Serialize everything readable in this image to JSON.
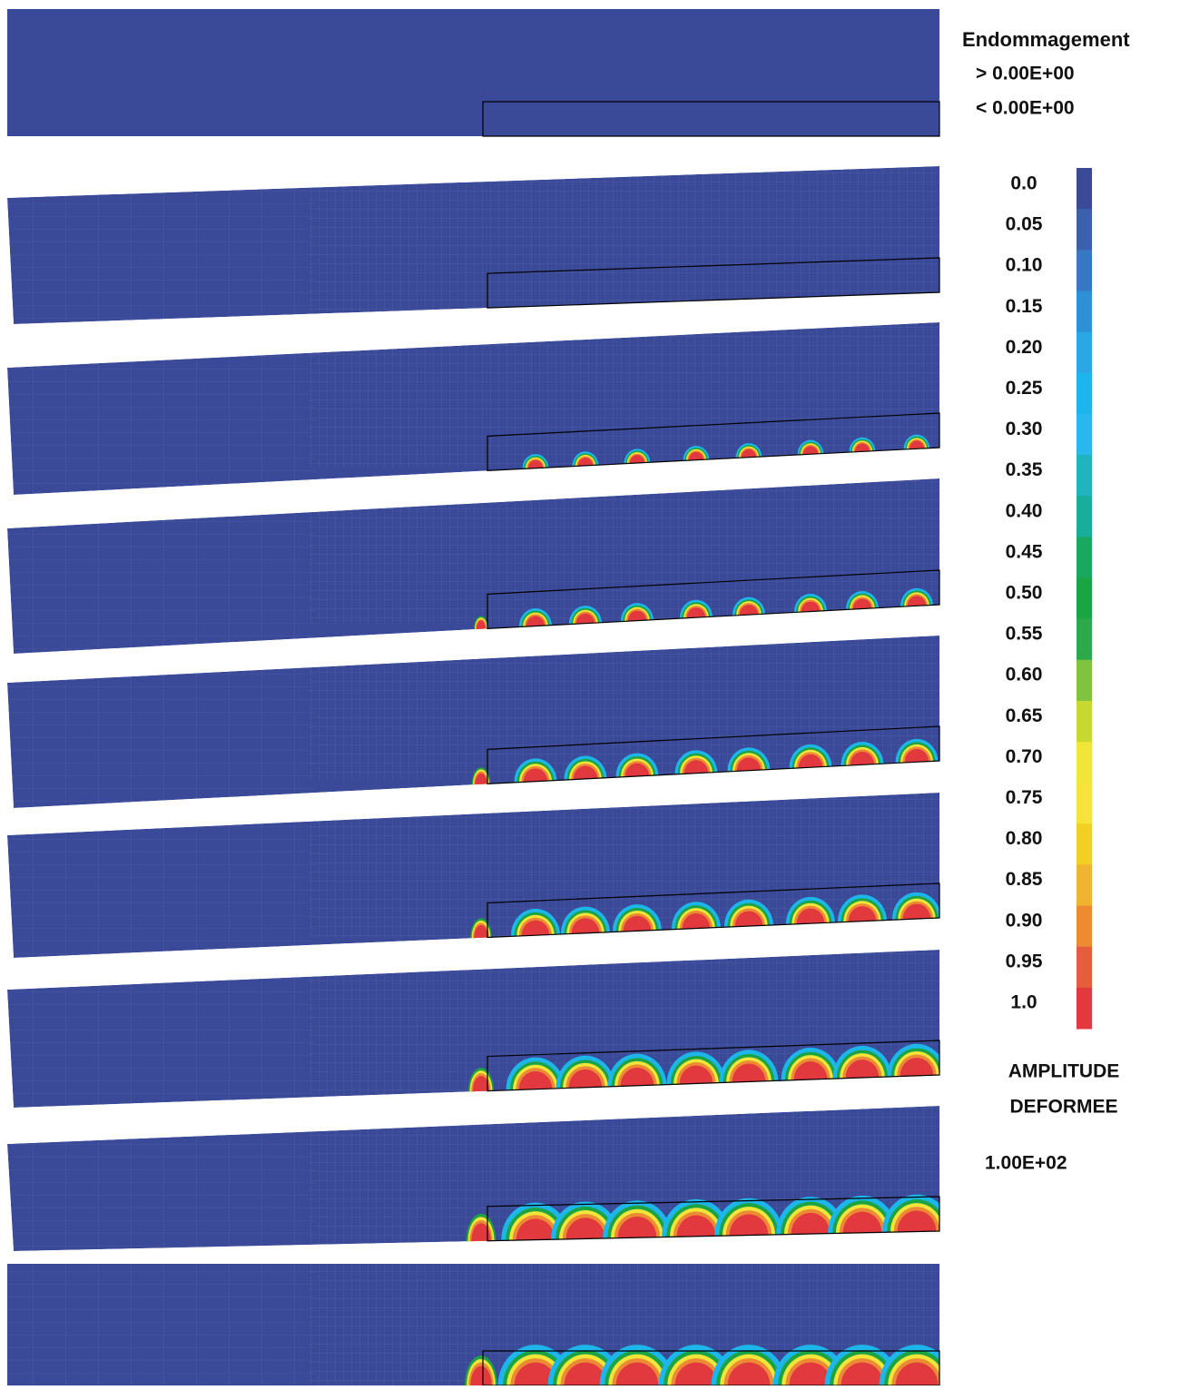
{
  "legend": {
    "title": "Endommagement",
    "above": "> 0.00E+00",
    "below": "< 0.00E+00"
  },
  "colorbar": {
    "labels": [
      "0.0",
      "0.05",
      "0.10",
      "0.15",
      "0.20",
      "0.25",
      "0.30",
      "0.35",
      "0.40",
      "0.45",
      "0.50",
      "0.55",
      "0.60",
      "0.65",
      "0.70",
      "0.75",
      "0.80",
      "0.85",
      "0.90",
      "0.95",
      "1.0"
    ],
    "colors": [
      "#3a4a98",
      "#3a60ae",
      "#3479c2",
      "#2f90d3",
      "#2ba7e2",
      "#1cb6ea",
      "#2ab8ec",
      "#22b3c3",
      "#19ad9b",
      "#1aa85f",
      "#1ca444",
      "#2fa84a",
      "#80c242",
      "#c6d932",
      "#f1e53a",
      "#f6e33c",
      "#f5ce23",
      "#f1b332",
      "#ec8b33",
      "#e45e3b",
      "#e1393e"
    ]
  },
  "amplitude": {
    "line1": "AMPLITUDE",
    "line2": "DEFORMEE",
    "value": "1.00E+02"
  }
}
